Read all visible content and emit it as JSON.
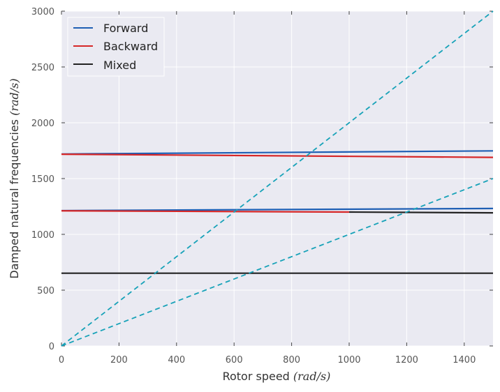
{
  "chart_data": {
    "type": "line",
    "title": "",
    "xlabel": "Rotor speed",
    "xlabel_unit": "(rad/s)",
    "ylabel": "Damped natural frequencies",
    "ylabel_unit": "(rad/s)",
    "xlim": [
      0,
      1500
    ],
    "ylim": [
      0,
      3000
    ],
    "xticks": [
      0,
      200,
      400,
      600,
      800,
      1000,
      1200,
      1400
    ],
    "yticks": [
      0,
      500,
      1000,
      1500,
      2000,
      2500,
      3000
    ],
    "grid": true,
    "legend_position": "upper-left",
    "colors": {
      "forward": "#1f5fb4",
      "backward": "#d62728",
      "mixed": "#222222",
      "reference": "#17a2b8",
      "background": "#eaeaf2",
      "grid": "#ffffff"
    },
    "legend": [
      {
        "label": "Forward",
        "color": "#1f5fb4"
      },
      {
        "label": "Backward",
        "color": "#d62728"
      },
      {
        "label": "Mixed",
        "color": "#222222"
      }
    ],
    "series": [
      {
        "type": "forward",
        "color": "#1f5fb4",
        "style": "solid",
        "x": [
          0,
          1500
        ],
        "y": [
          1720,
          1748
        ]
      },
      {
        "type": "backward",
        "color": "#d62728",
        "style": "solid",
        "x": [
          0,
          1500
        ],
        "y": [
          1718,
          1690
        ]
      },
      {
        "type": "forward",
        "color": "#1f5fb4",
        "style": "solid",
        "x": [
          0,
          1500
        ],
        "y": [
          1213,
          1232
        ]
      },
      {
        "type": "backward",
        "color": "#d62728",
        "style": "solid",
        "x": [
          0,
          1000
        ],
        "y": [
          1211,
          1200
        ]
      },
      {
        "type": "mixed",
        "color": "#222222",
        "style": "solid",
        "x": [
          1000,
          1500
        ],
        "y": [
          1200,
          1193
        ]
      },
      {
        "type": "mixed",
        "color": "#222222",
        "style": "solid",
        "x": [
          0,
          1500
        ],
        "y": [
          652,
          652
        ]
      },
      {
        "type": "reference",
        "color": "#17a2b8",
        "style": "dashed",
        "x": [
          0,
          1500
        ],
        "y": [
          0,
          3000
        ]
      },
      {
        "type": "reference",
        "color": "#17a2b8",
        "style": "dashed",
        "x": [
          0,
          1500
        ],
        "y": [
          0,
          1500
        ]
      }
    ]
  }
}
